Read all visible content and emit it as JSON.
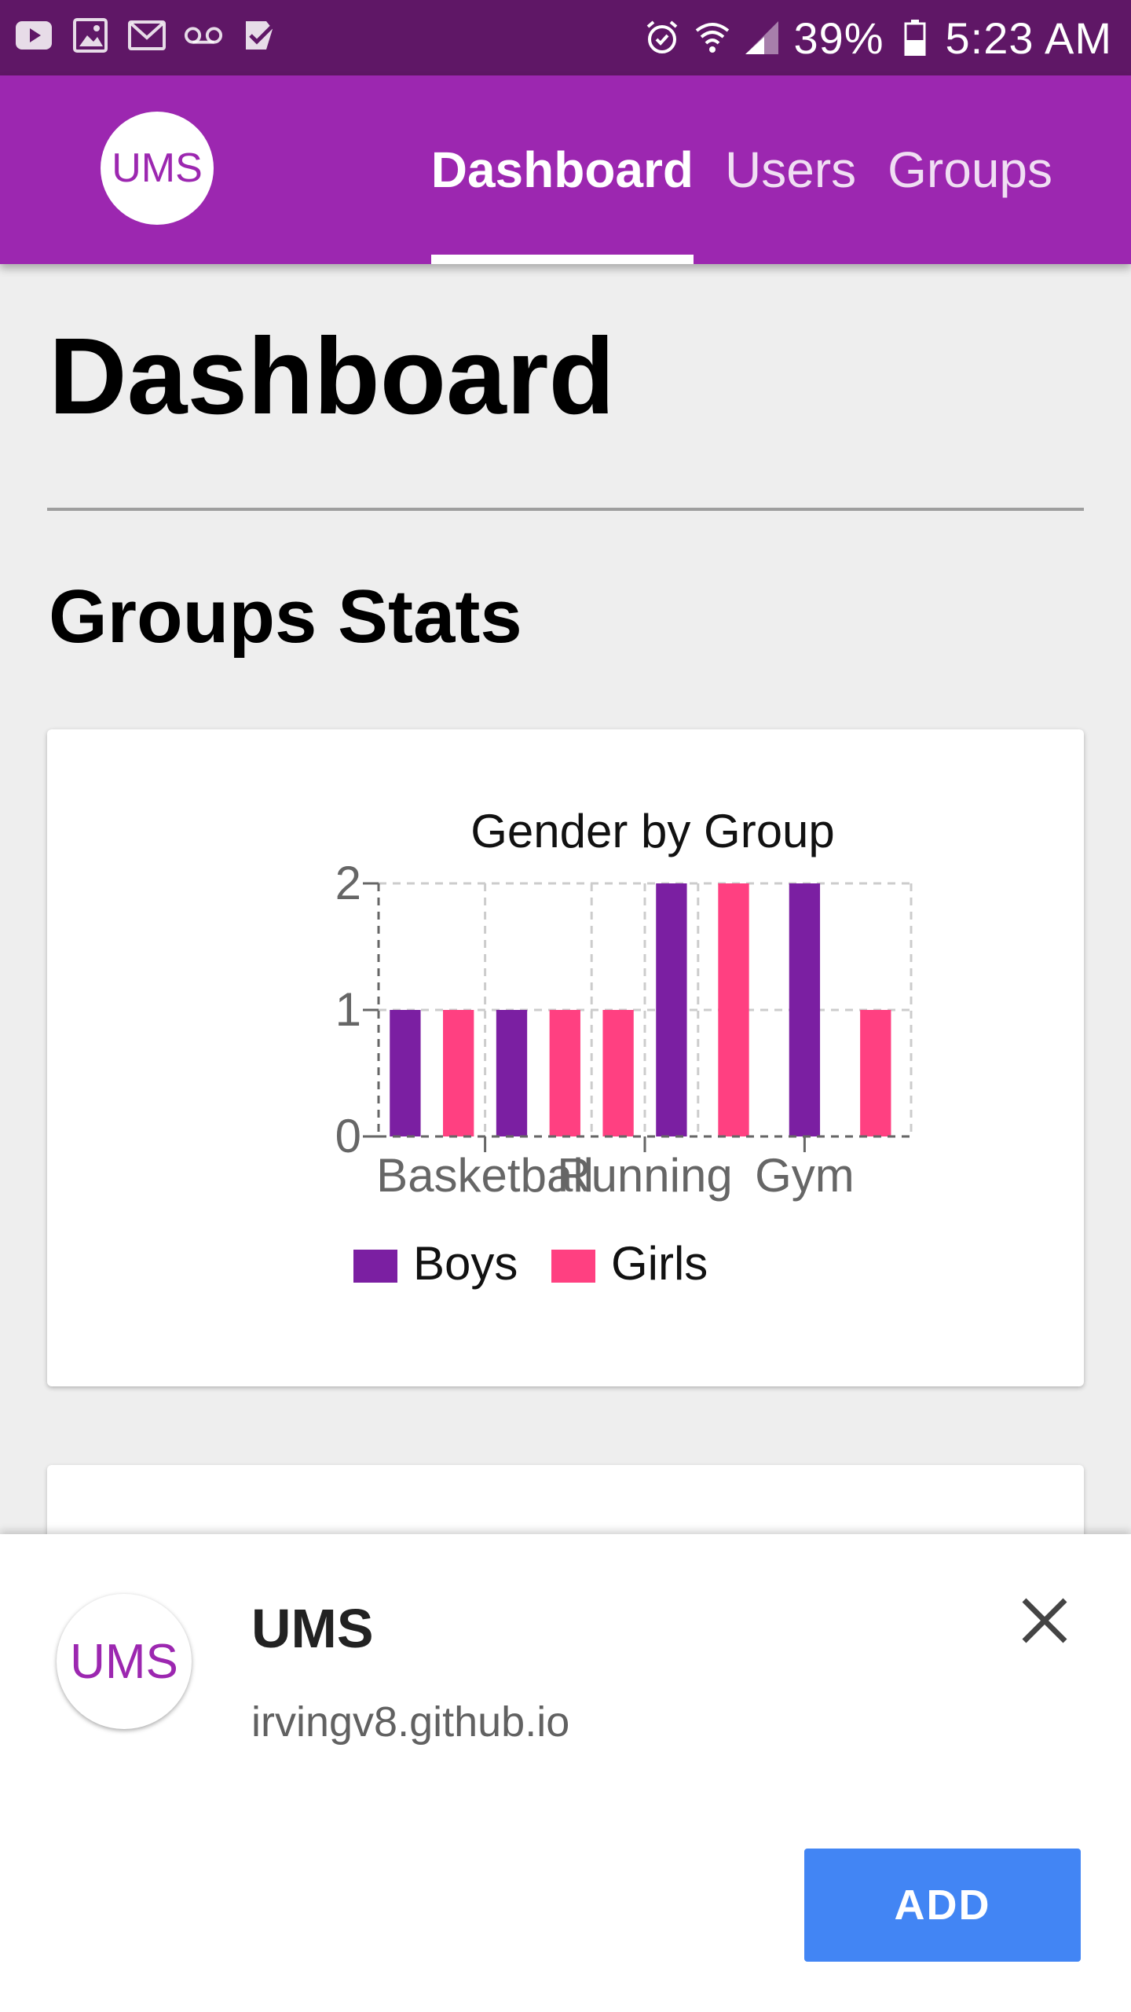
{
  "status_bar": {
    "left_icons": [
      "youtube-icon",
      "image-icon",
      "gmail-icon",
      "voicemail-icon",
      "task-check-icon"
    ],
    "right_icons": [
      "alarm-icon",
      "wifi-icon",
      "signal-icon"
    ],
    "battery": "39%",
    "time": "5:23 AM"
  },
  "appbar": {
    "logo_text": "UMS",
    "tabs": [
      {
        "label": "Dashboard",
        "active": true
      },
      {
        "label": "Users",
        "active": false
      },
      {
        "label": "Groups",
        "active": false
      }
    ],
    "color": "#9c27b0"
  },
  "main": {
    "title": "Dashboard",
    "section_title": "Groups Stats"
  },
  "chart_data": {
    "type": "bar",
    "title": "Gender by Group",
    "categories": [
      "Basketball",
      "Running",
      "Gym"
    ],
    "bars": [
      {
        "series": "Boys",
        "value": 1
      },
      {
        "series": "Girls",
        "value": 1
      },
      {
        "series": "Boys",
        "value": 1
      },
      {
        "series": "Girls",
        "value": 1
      },
      {
        "series": "Girls",
        "value": 1
      },
      {
        "series": "Boys",
        "value": 2
      },
      {
        "series": "Girls",
        "value": 2
      },
      {
        "series": "Boys",
        "value": 2
      },
      {
        "series": "Girls",
        "value": 1
      }
    ],
    "series": [
      {
        "name": "Boys",
        "color": "#7b1fa2"
      },
      {
        "name": "Girls",
        "color": "#ff4081"
      }
    ],
    "yticks": [
      "0",
      "1",
      "2"
    ],
    "ylim": [
      0,
      2
    ],
    "grid": true,
    "legend_position": "bottom"
  },
  "banner": {
    "logo_text": "UMS",
    "app_name": "UMS",
    "url": "irvingv8.github.io",
    "add_label": "ADD",
    "close_icon": "close-icon",
    "button_color": "#4285f4"
  }
}
